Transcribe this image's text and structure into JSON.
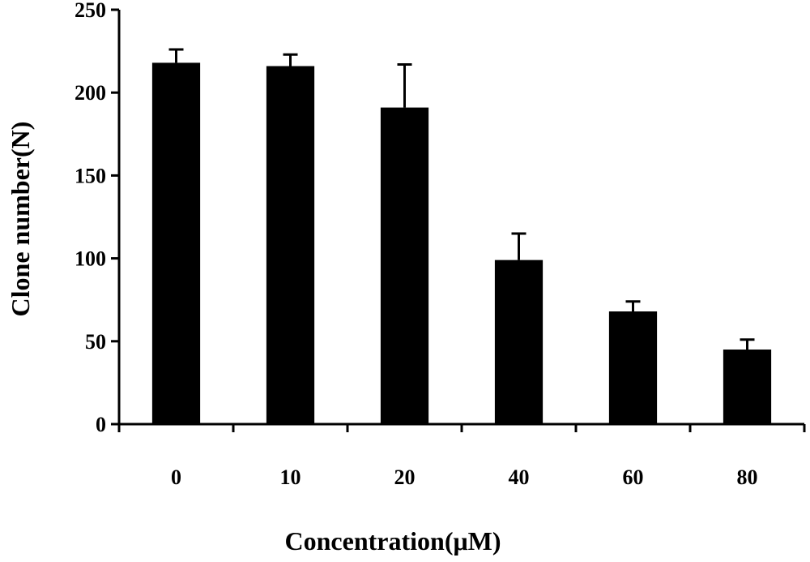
{
  "chart_data": {
    "type": "bar",
    "categories": [
      "0",
      "10",
      "20",
      "40",
      "60",
      "80"
    ],
    "values": [
      218,
      216,
      191,
      99,
      68,
      45
    ],
    "errors": [
      8,
      7,
      26,
      16,
      6,
      6
    ],
    "title": "",
    "xlabel": "Concentration(μM)",
    "ylabel": "Clone number(N)",
    "ylim": [
      0,
      250
    ],
    "yticks": [
      "0",
      "50",
      "100",
      "150",
      "200",
      "250"
    ],
    "grid": false,
    "colors": {
      "bar": "#000000",
      "axis": "#000000",
      "background": "#ffffff"
    }
  }
}
